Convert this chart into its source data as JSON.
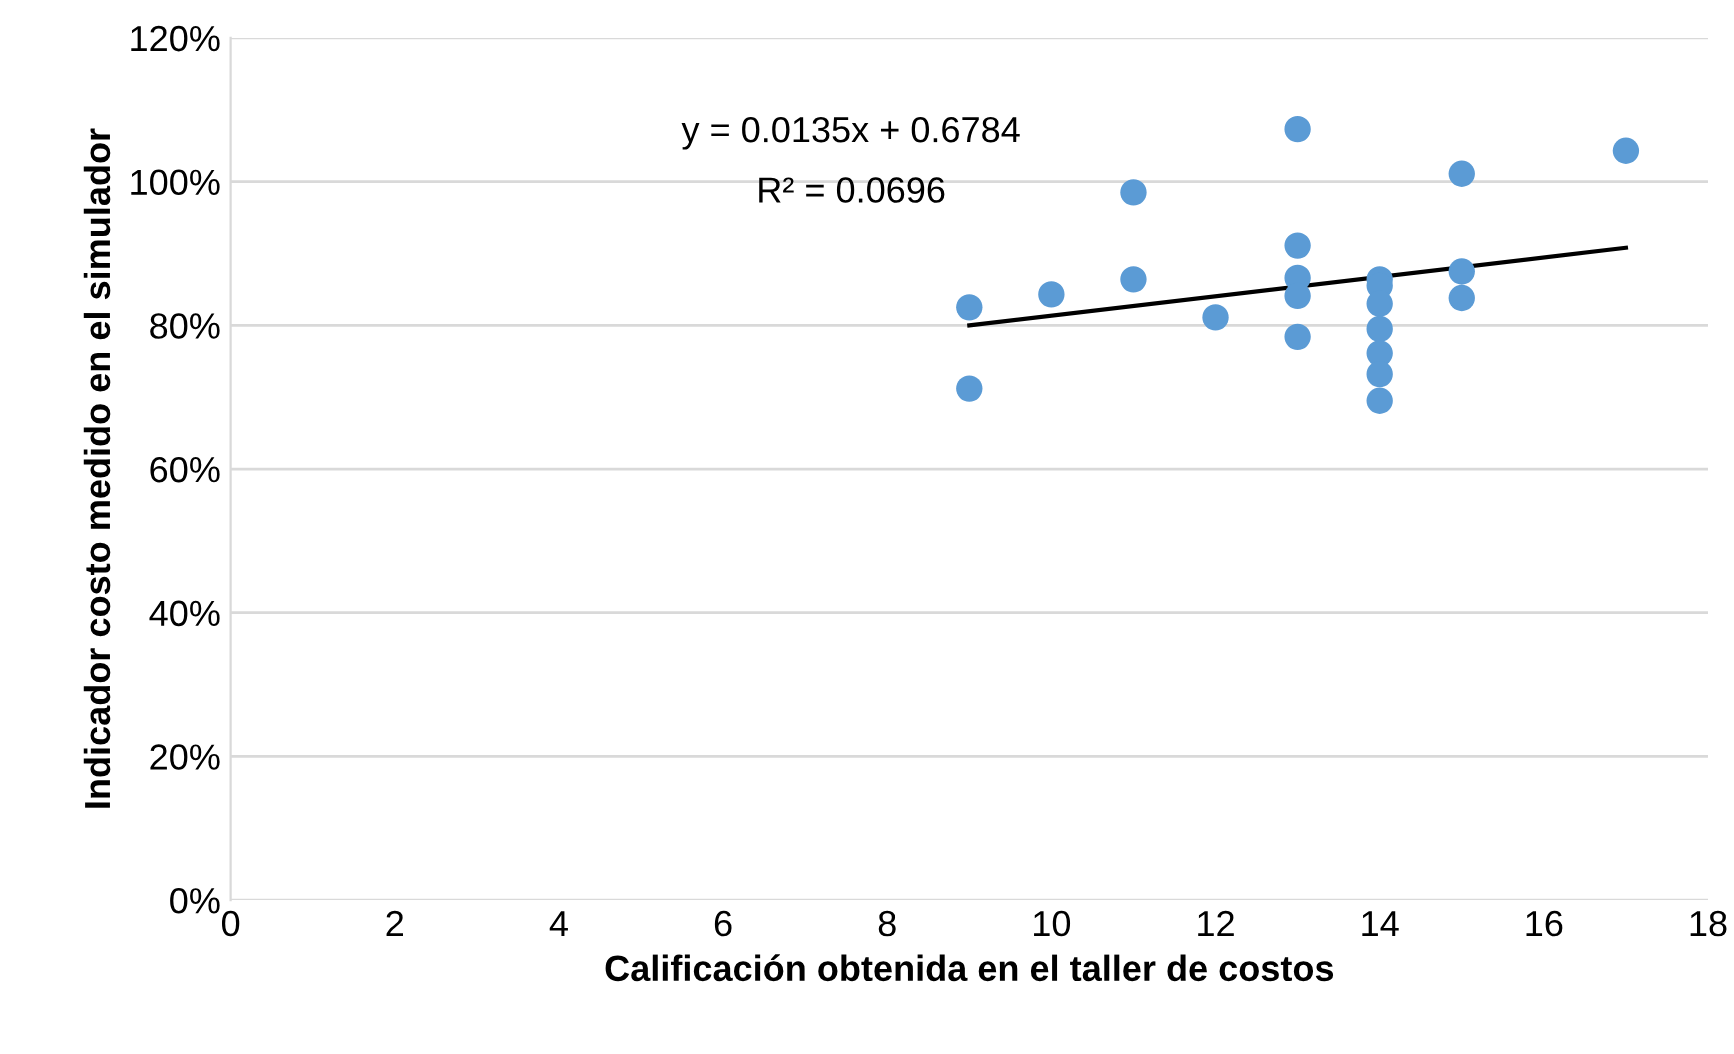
{
  "chart_data": {
    "type": "scatter",
    "xlabel": "Calificación obtenida en el taller de costos",
    "ylabel": "Indicador costo medido en el simulador",
    "xlim": [
      0,
      18
    ],
    "xticks": [
      0,
      2,
      4,
      6,
      8,
      10,
      12,
      14,
      16,
      18
    ],
    "ylim": [
      0,
      120
    ],
    "yticks": [
      {
        "value": 0,
        "label": "0%"
      },
      {
        "value": 20,
        "label": "20%"
      },
      {
        "value": 40,
        "label": "40%"
      },
      {
        "value": 60,
        "label": "60%"
      },
      {
        "value": 80,
        "label": "80%"
      },
      {
        "value": 100,
        "label": "100%"
      },
      {
        "value": 120,
        "label": "120%"
      }
    ],
    "grid": "y",
    "legend": false,
    "annotations": [
      "y = 0.0135x + 0.6784",
      "R² = 0.0696"
    ],
    "series": [
      {
        "color": "#5b9bd5",
        "marker": "circle",
        "x": [
          9,
          9,
          10,
          11,
          11,
          12,
          13,
          13,
          13,
          13,
          13,
          14,
          14,
          14,
          14,
          14,
          14,
          14,
          15,
          15,
          15,
          17
        ],
        "values": [
          82.5,
          71.2,
          84.3,
          98.5,
          86.4,
          81.1,
          107.3,
          91.1,
          86.6,
          84.1,
          78.4,
          86.4,
          85.5,
          83.0,
          79.5,
          76.1,
          73.2,
          69.5,
          101.1,
          87.5,
          83.8,
          104.3
        ]
      },
      {
        "type": "line",
        "color": "#000000",
        "marker": "none",
        "line_style": "solid",
        "x": [
          9,
          17
        ],
        "values": [
          80.0,
          90.8
        ]
      }
    ]
  }
}
